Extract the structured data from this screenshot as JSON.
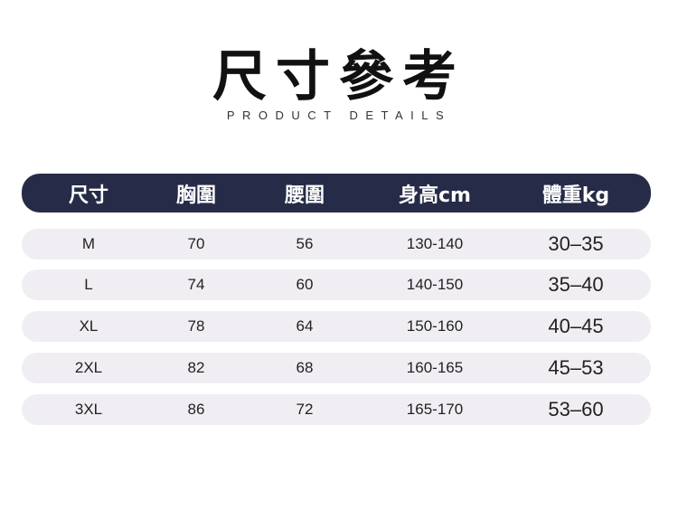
{
  "title": "尺寸參考",
  "subtitle": "PRODUCT DETAILS",
  "table": {
    "headers": [
      "尺寸",
      "胸圍",
      "腰圍",
      "身高cm",
      "體重kg"
    ],
    "rows": [
      [
        "M",
        "70",
        "56",
        "130-140",
        "30–35"
      ],
      [
        "L",
        "74",
        "60",
        "140-150",
        "35–40"
      ],
      [
        "XL",
        "78",
        "64",
        "150-160",
        "40–45"
      ],
      [
        "2XL",
        "82",
        "68",
        "160-165",
        "45–53"
      ],
      [
        "3XL",
        "86",
        "72",
        "165-170",
        "53–60"
      ]
    ]
  },
  "colors": {
    "header_bg": "#262b47",
    "row_bg": "#f0eef3"
  }
}
